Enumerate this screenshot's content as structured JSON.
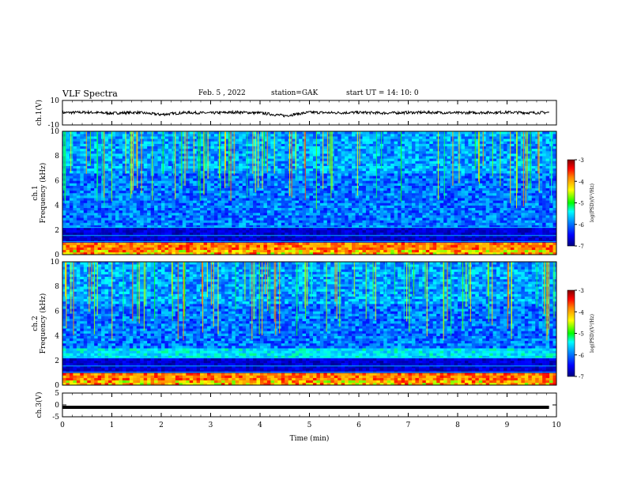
{
  "header": {
    "title": "VLF Spectra",
    "date": "Feb. 5 , 2022",
    "station": "station=GAK",
    "start": "start UT =  14: 10: 0"
  },
  "chart_data": [
    {
      "type": "line",
      "panel": "ch1-waveform",
      "ylabel": "ch.1(V)",
      "ylim": [
        -10,
        10
      ],
      "yticks": [
        "10",
        "-10"
      ],
      "x": [
        0,
        0.5,
        1,
        1.5,
        2,
        2.5,
        3,
        3.5,
        4,
        4.5,
        5,
        5.5,
        6,
        6.5,
        7,
        7.5,
        8,
        8.5,
        9,
        9.5,
        9.85
      ],
      "values": [
        0,
        0.3,
        -0.4,
        0.2,
        -1.5,
        0.1,
        -0.3,
        0.4,
        -0.2,
        -2.5,
        0.3,
        -0.1,
        0.2,
        -0.3,
        0.1,
        0.2,
        -0.2,
        0.1,
        0.3,
        -0.1,
        0.2
      ]
    },
    {
      "type": "heatmap",
      "panel": "ch1-spectrogram",
      "ylabel": "ch.1\nFrequency  (kHz)",
      "ylim": [
        0,
        10
      ],
      "yticks": [
        "0",
        "2",
        "4",
        "6",
        "8",
        "10"
      ],
      "colorbar": {
        "label": "log(PSD)(V²/Hz)",
        "range": [
          -7,
          -3
        ],
        "ticks": [
          "-3",
          "-4",
          "-5",
          "-6",
          "-7"
        ]
      }
    },
    {
      "type": "heatmap",
      "panel": "ch2-spectrogram",
      "ylabel": "ch.2\nFrequency  (kHz)",
      "ylim": [
        0,
        10
      ],
      "yticks": [
        "0",
        "2",
        "4",
        "6",
        "8",
        "10"
      ],
      "colorbar": {
        "label": "log(PSD)(V²/Hz)",
        "range": [
          -7,
          -3
        ],
        "ticks": [
          "-3",
          "-4",
          "-5",
          "-6",
          "-7"
        ]
      }
    },
    {
      "type": "line",
      "panel": "ch3-waveform",
      "ylabel": "ch.3(V)",
      "ylim": [
        -5,
        5
      ],
      "yticks": [
        "5",
        "0",
        "-5"
      ],
      "x": [
        0,
        9.85
      ],
      "values": [
        -1,
        -1
      ]
    }
  ],
  "xaxis": {
    "label": "Time  (min)",
    "ticks": [
      "0",
      "1",
      "2",
      "3",
      "4",
      "5",
      "6",
      "7",
      "8",
      "9",
      "10"
    ],
    "range": [
      0,
      10
    ]
  },
  "colors": {
    "colormap": [
      "#000080",
      "#0000ff",
      "#00a0ff",
      "#00ffff",
      "#00ff00",
      "#ffff00",
      "#ff8000",
      "#ff0000",
      "#800000"
    ]
  }
}
